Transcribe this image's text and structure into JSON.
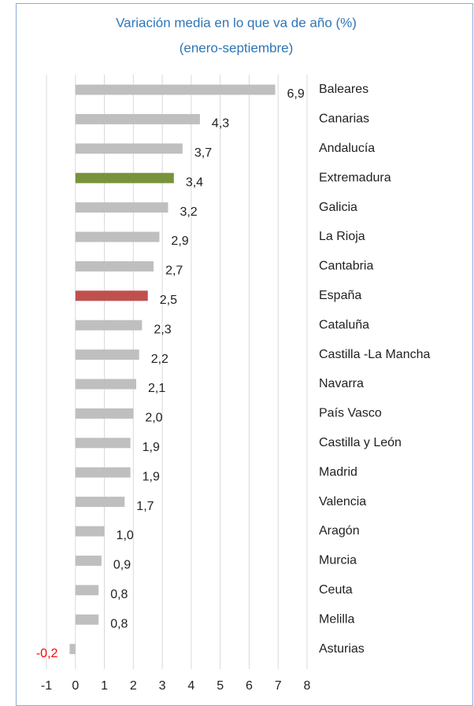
{
  "chart_data": {
    "type": "bar",
    "orientation": "horizontal",
    "title": "Variación media en lo que va de año (%)",
    "subtitle": "(enero-septiembre)",
    "categories": [
      "Baleares",
      "Canarias",
      "Andalucía",
      "Extremadura",
      "Galicia",
      "La Rioja",
      "Cantabria",
      "España",
      "Cataluña",
      "Castilla -La Mancha",
      "Navarra",
      "País Vasco",
      "Castilla y León",
      "Madrid",
      "Valencia",
      "Aragón",
      "Murcia",
      "Ceuta",
      "Melilla",
      "Asturias"
    ],
    "values": [
      6.9,
      4.3,
      3.7,
      3.4,
      3.2,
      2.9,
      2.7,
      2.5,
      2.3,
      2.2,
      2.1,
      2.0,
      1.9,
      1.9,
      1.7,
      1.0,
      0.9,
      0.8,
      0.8,
      -0.2
    ],
    "value_labels": [
      "6,9",
      "4,3",
      "3,7",
      "3,4",
      "3,2",
      "2,9",
      "2,7",
      "2,5",
      "2,3",
      "2,2",
      "2,1",
      "2,0",
      "1,9",
      "1,9",
      "1,7",
      "1,0",
      "0,9",
      "0,8",
      "0,8",
      "-0,2"
    ],
    "colors": [
      "#bfbfbf",
      "#bfbfbf",
      "#bfbfbf",
      "#77933c",
      "#bfbfbf",
      "#bfbfbf",
      "#bfbfbf",
      "#c0504d",
      "#bfbfbf",
      "#bfbfbf",
      "#bfbfbf",
      "#bfbfbf",
      "#bfbfbf",
      "#bfbfbf",
      "#bfbfbf",
      "#bfbfbf",
      "#bfbfbf",
      "#bfbfbf",
      "#bfbfbf",
      "#bfbfbf"
    ],
    "negative_label_color": "#ff0000",
    "xlim": [
      -1,
      8
    ],
    "xticks": [
      -1,
      0,
      1,
      2,
      3,
      4,
      5,
      6,
      7,
      8
    ],
    "grid": true
  }
}
